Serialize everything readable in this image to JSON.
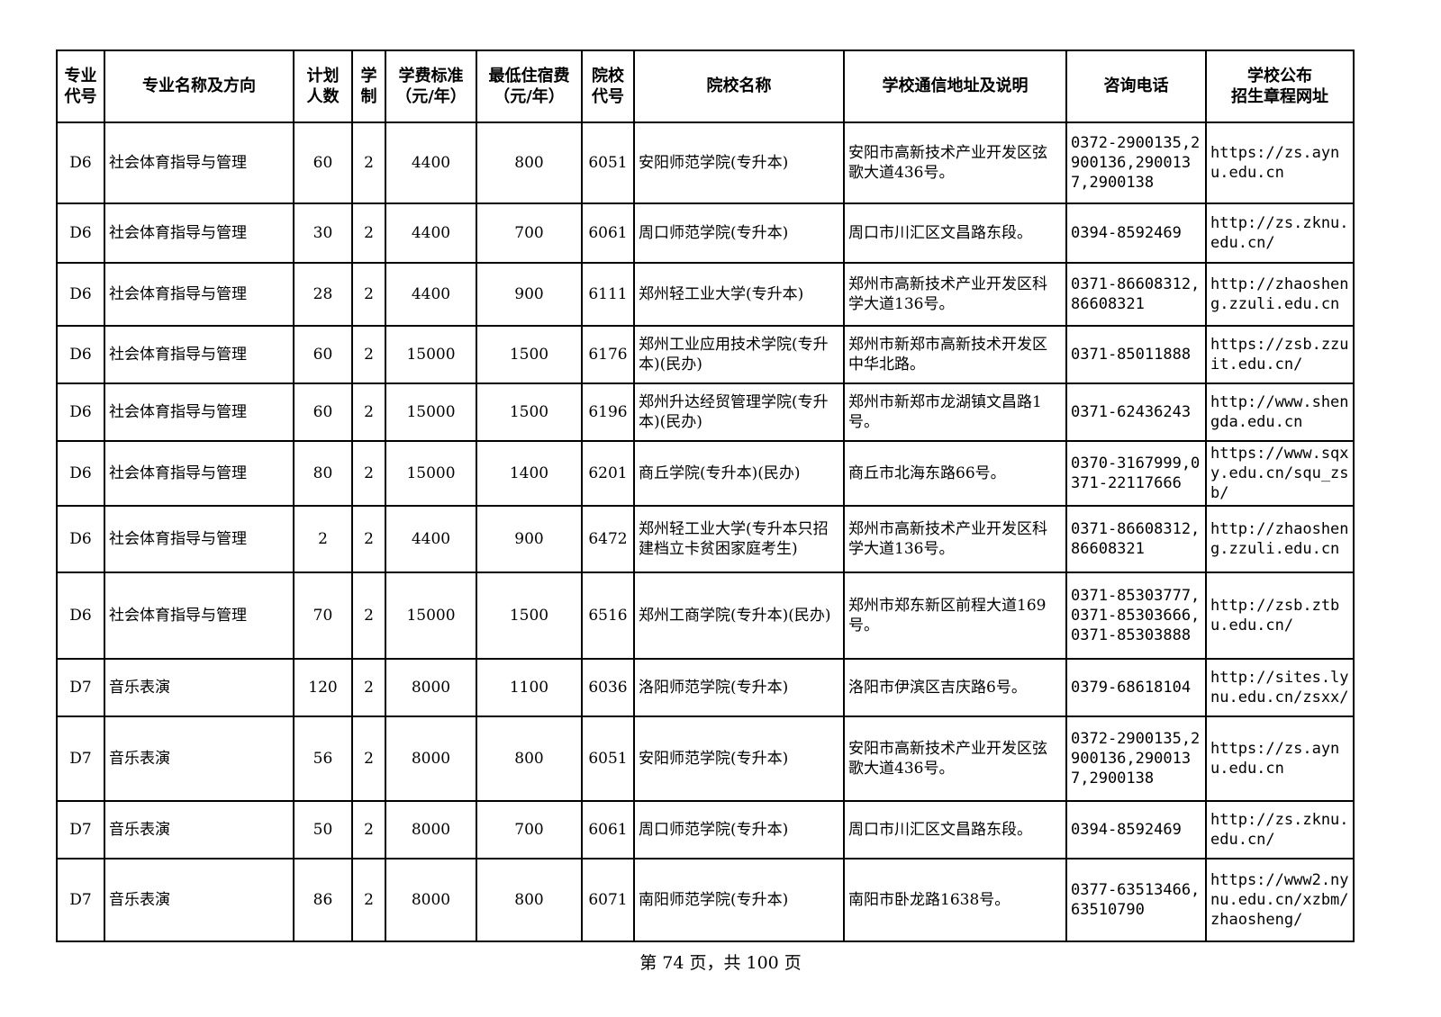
{
  "page": {
    "footer": "第 74 页，共 100 页"
  },
  "table": {
    "headers": [
      "专业\n代号",
      "专业名称及方向",
      "计划\n人数",
      "学\n制",
      "学费标准\n（元/年）",
      "最低住宿费\n（元/年）",
      "院校\n代号",
      "院校名称",
      "学校通信地址及说明",
      "咨询电话",
      "学校公布\n招生章程网址"
    ],
    "rows": [
      {
        "major_code": "D6",
        "major_name": "社会体育指导与管理",
        "plan_count": "60",
        "years": "2",
        "tuition": "4400",
        "dorm_fee": "800",
        "college_code": "6051",
        "college_name": "安阳师范学院(专升本)",
        "address": "安阳市高新技术产业开发区弦歌大道436号。",
        "phone": "0372-2900135,2900136,2900137,2900138",
        "url": "https://zs.aynu.edu.cn"
      },
      {
        "major_code": "D6",
        "major_name": "社会体育指导与管理",
        "plan_count": "30",
        "years": "2",
        "tuition": "4400",
        "dorm_fee": "700",
        "college_code": "6061",
        "college_name": "周口师范学院(专升本)",
        "address": "周口市川汇区文昌路东段。",
        "phone": "0394-8592469",
        "url": "http://zs.zknu.edu.cn/"
      },
      {
        "major_code": "D6",
        "major_name": "社会体育指导与管理",
        "plan_count": "28",
        "years": "2",
        "tuition": "4400",
        "dorm_fee": "900",
        "college_code": "6111",
        "college_name": "郑州轻工业大学(专升本)",
        "address": "郑州市高新技术产业开发区科学大道136号。",
        "phone": "0371-86608312,86608321",
        "url": "http://zhaosheng.zzuli.edu.cn"
      },
      {
        "major_code": "D6",
        "major_name": "社会体育指导与管理",
        "plan_count": "60",
        "years": "2",
        "tuition": "15000",
        "dorm_fee": "1500",
        "college_code": "6176",
        "college_name": "郑州工业应用技术学院(专升本)(民办)",
        "address": "郑州市新郑市高新技术开发区中华北路。",
        "phone": "0371-85011888",
        "url": "https://zsb.zzuit.edu.cn/"
      },
      {
        "major_code": "D6",
        "major_name": "社会体育指导与管理",
        "plan_count": "60",
        "years": "2",
        "tuition": "15000",
        "dorm_fee": "1500",
        "college_code": "6196",
        "college_name": "郑州升达经贸管理学院(专升本)(民办)",
        "address": "郑州市新郑市龙湖镇文昌路1号。",
        "phone": "0371-62436243",
        "url": "http://www.shengda.edu.cn"
      },
      {
        "major_code": "D6",
        "major_name": "社会体育指导与管理",
        "plan_count": "80",
        "years": "2",
        "tuition": "15000",
        "dorm_fee": "1400",
        "college_code": "6201",
        "college_name": "商丘学院(专升本)(民办)",
        "address": "商丘市北海东路66号。",
        "phone": "0370-3167999,0371-22117666",
        "url": "https://www.sqxy.edu.cn/squ_zsb/"
      },
      {
        "major_code": "D6",
        "major_name": "社会体育指导与管理",
        "plan_count": "2",
        "years": "2",
        "tuition": "4400",
        "dorm_fee": "900",
        "college_code": "6472",
        "college_name": "郑州轻工业大学(专升本只招建档立卡贫困家庭考生)",
        "address": "郑州市高新技术产业开发区科学大道136号。",
        "phone": "0371-86608312,86608321",
        "url": "http://zhaosheng.zzuli.edu.cn"
      },
      {
        "major_code": "D6",
        "major_name": "社会体育指导与管理",
        "plan_count": "70",
        "years": "2",
        "tuition": "15000",
        "dorm_fee": "1500",
        "college_code": "6516",
        "college_name": "郑州工商学院(专升本)(民办)",
        "address": "郑州市郑东新区前程大道169号。",
        "phone": "0371-85303777,0371-85303666,0371-85303888",
        "url": "http://zsb.ztbu.edu.cn/"
      },
      {
        "major_code": "D7",
        "major_name": "音乐表演",
        "plan_count": "120",
        "years": "2",
        "tuition": "8000",
        "dorm_fee": "1100",
        "college_code": "6036",
        "college_name": "洛阳师范学院(专升本)",
        "address": "洛阳市伊滨区吉庆路6号。",
        "phone": "0379-68618104",
        "url": "http://sites.lynu.edu.cn/zsxx/"
      },
      {
        "major_code": "D7",
        "major_name": "音乐表演",
        "plan_count": "56",
        "years": "2",
        "tuition": "8000",
        "dorm_fee": "800",
        "college_code": "6051",
        "college_name": "安阳师范学院(专升本)",
        "address": "安阳市高新技术产业开发区弦歌大道436号。",
        "phone": "0372-2900135,2900136,2900137,2900138",
        "url": "https://zs.aynu.edu.cn"
      },
      {
        "major_code": "D7",
        "major_name": "音乐表演",
        "plan_count": "50",
        "years": "2",
        "tuition": "8000",
        "dorm_fee": "700",
        "college_code": "6061",
        "college_name": "周口师范学院(专升本)",
        "address": "周口市川汇区文昌路东段。",
        "phone": "0394-8592469",
        "url": "http://zs.zknu.edu.cn/"
      },
      {
        "major_code": "D7",
        "major_name": "音乐表演",
        "plan_count": "86",
        "years": "2",
        "tuition": "8000",
        "dorm_fee": "800",
        "college_code": "6071",
        "college_name": "南阳师范学院(专升本)",
        "address": "南阳市卧龙路1638号。",
        "phone": "0377-63513466,63510790",
        "url": "https://www2.nynu.edu.cn/xzbm/zhaosheng/"
      }
    ]
  }
}
